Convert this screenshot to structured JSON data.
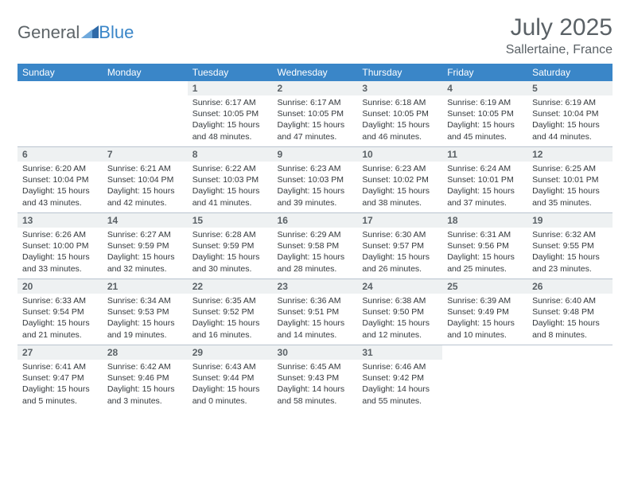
{
  "logo": {
    "part1": "General",
    "part2": "Blue"
  },
  "title": "July 2025",
  "location": "Sallertaine, France",
  "colors": {
    "header_bg": "#3a86c8",
    "daynum_bg": "#eef1f2",
    "text_muted": "#5a6166",
    "text_body": "#33383c",
    "row_border": "#b9c4cf"
  },
  "dayNames": [
    "Sunday",
    "Monday",
    "Tuesday",
    "Wednesday",
    "Thursday",
    "Friday",
    "Saturday"
  ],
  "weeks": [
    [
      null,
      null,
      {
        "n": "1",
        "sr": "6:17 AM",
        "ss": "10:05 PM",
        "dl": "15 hours and 48 minutes."
      },
      {
        "n": "2",
        "sr": "6:17 AM",
        "ss": "10:05 PM",
        "dl": "15 hours and 47 minutes."
      },
      {
        "n": "3",
        "sr": "6:18 AM",
        "ss": "10:05 PM",
        "dl": "15 hours and 46 minutes."
      },
      {
        "n": "4",
        "sr": "6:19 AM",
        "ss": "10:05 PM",
        "dl": "15 hours and 45 minutes."
      },
      {
        "n": "5",
        "sr": "6:19 AM",
        "ss": "10:04 PM",
        "dl": "15 hours and 44 minutes."
      }
    ],
    [
      {
        "n": "6",
        "sr": "6:20 AM",
        "ss": "10:04 PM",
        "dl": "15 hours and 43 minutes."
      },
      {
        "n": "7",
        "sr": "6:21 AM",
        "ss": "10:04 PM",
        "dl": "15 hours and 42 minutes."
      },
      {
        "n": "8",
        "sr": "6:22 AM",
        "ss": "10:03 PM",
        "dl": "15 hours and 41 minutes."
      },
      {
        "n": "9",
        "sr": "6:23 AM",
        "ss": "10:03 PM",
        "dl": "15 hours and 39 minutes."
      },
      {
        "n": "10",
        "sr": "6:23 AM",
        "ss": "10:02 PM",
        "dl": "15 hours and 38 minutes."
      },
      {
        "n": "11",
        "sr": "6:24 AM",
        "ss": "10:01 PM",
        "dl": "15 hours and 37 minutes."
      },
      {
        "n": "12",
        "sr": "6:25 AM",
        "ss": "10:01 PM",
        "dl": "15 hours and 35 minutes."
      }
    ],
    [
      {
        "n": "13",
        "sr": "6:26 AM",
        "ss": "10:00 PM",
        "dl": "15 hours and 33 minutes."
      },
      {
        "n": "14",
        "sr": "6:27 AM",
        "ss": "9:59 PM",
        "dl": "15 hours and 32 minutes."
      },
      {
        "n": "15",
        "sr": "6:28 AM",
        "ss": "9:59 PM",
        "dl": "15 hours and 30 minutes."
      },
      {
        "n": "16",
        "sr": "6:29 AM",
        "ss": "9:58 PM",
        "dl": "15 hours and 28 minutes."
      },
      {
        "n": "17",
        "sr": "6:30 AM",
        "ss": "9:57 PM",
        "dl": "15 hours and 26 minutes."
      },
      {
        "n": "18",
        "sr": "6:31 AM",
        "ss": "9:56 PM",
        "dl": "15 hours and 25 minutes."
      },
      {
        "n": "19",
        "sr": "6:32 AM",
        "ss": "9:55 PM",
        "dl": "15 hours and 23 minutes."
      }
    ],
    [
      {
        "n": "20",
        "sr": "6:33 AM",
        "ss": "9:54 PM",
        "dl": "15 hours and 21 minutes."
      },
      {
        "n": "21",
        "sr": "6:34 AM",
        "ss": "9:53 PM",
        "dl": "15 hours and 19 minutes."
      },
      {
        "n": "22",
        "sr": "6:35 AM",
        "ss": "9:52 PM",
        "dl": "15 hours and 16 minutes."
      },
      {
        "n": "23",
        "sr": "6:36 AM",
        "ss": "9:51 PM",
        "dl": "15 hours and 14 minutes."
      },
      {
        "n": "24",
        "sr": "6:38 AM",
        "ss": "9:50 PM",
        "dl": "15 hours and 12 minutes."
      },
      {
        "n": "25",
        "sr": "6:39 AM",
        "ss": "9:49 PM",
        "dl": "15 hours and 10 minutes."
      },
      {
        "n": "26",
        "sr": "6:40 AM",
        "ss": "9:48 PM",
        "dl": "15 hours and 8 minutes."
      }
    ],
    [
      {
        "n": "27",
        "sr": "6:41 AM",
        "ss": "9:47 PM",
        "dl": "15 hours and 5 minutes."
      },
      {
        "n": "28",
        "sr": "6:42 AM",
        "ss": "9:46 PM",
        "dl": "15 hours and 3 minutes."
      },
      {
        "n": "29",
        "sr": "6:43 AM",
        "ss": "9:44 PM",
        "dl": "15 hours and 0 minutes."
      },
      {
        "n": "30",
        "sr": "6:45 AM",
        "ss": "9:43 PM",
        "dl": "14 hours and 58 minutes."
      },
      {
        "n": "31",
        "sr": "6:46 AM",
        "ss": "9:42 PM",
        "dl": "14 hours and 55 minutes."
      },
      null,
      null
    ]
  ],
  "labels": {
    "sunrise": "Sunrise:",
    "sunset": "Sunset:",
    "daylight": "Daylight:"
  }
}
